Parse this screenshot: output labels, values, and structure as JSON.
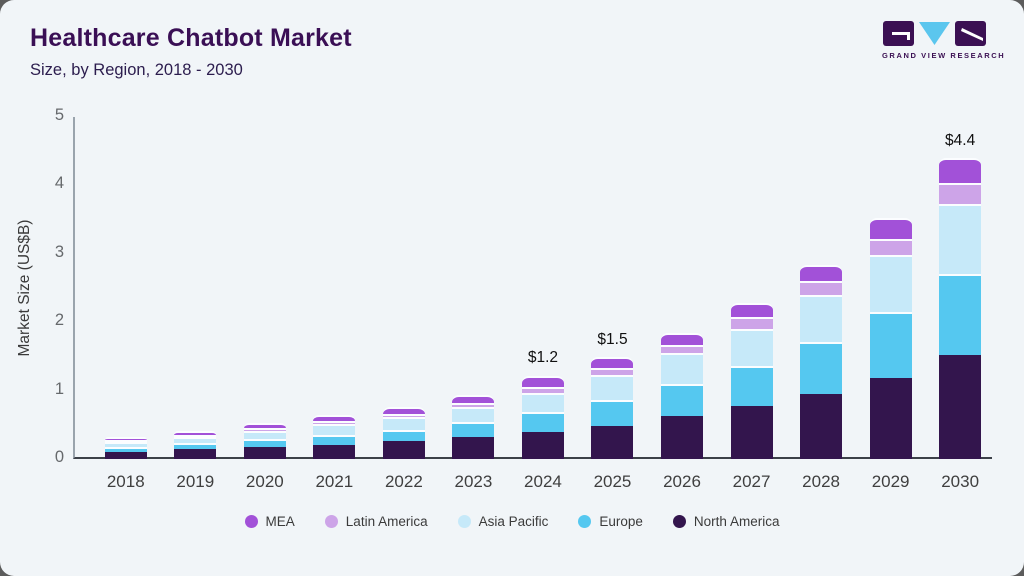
{
  "header": {
    "title": "Healthcare Chatbot Market",
    "subtitle": "Size, by Region, 2018 - 2030"
  },
  "logo": {
    "text": "GRAND VIEW RESEARCH",
    "dark_color": "#3b1053",
    "accent_color": "#5bc6ee"
  },
  "chart_data": {
    "type": "bar",
    "stacked": true,
    "title": "Healthcare Chatbot Market Size, by Region, 2018 - 2030",
    "xlabel": "",
    "ylabel": "Market Size (US$B)",
    "ylim": [
      0,
      5
    ],
    "yticks": [
      0,
      1,
      2,
      3,
      4,
      5
    ],
    "grid": false,
    "legend_position": "bottom",
    "categories": [
      "2018",
      "2019",
      "2020",
      "2021",
      "2022",
      "2023",
      "2024",
      "2025",
      "2026",
      "2027",
      "2028",
      "2029",
      "2030"
    ],
    "series": [
      {
        "name": "North America",
        "color": "#33154d",
        "values": [
          0.1,
          0.14,
          0.18,
          0.21,
          0.27,
          0.32,
          0.4,
          0.48,
          0.63,
          0.78,
          0.95,
          1.18,
          1.52
        ]
      },
      {
        "name": "Europe",
        "color": "#55c8f0",
        "values": [
          0.07,
          0.09,
          0.12,
          0.15,
          0.16,
          0.22,
          0.29,
          0.38,
          0.47,
          0.59,
          0.76,
          0.96,
          1.18
        ]
      },
      {
        "name": "Asia Pacific",
        "color": "#c6e9f9",
        "values": [
          0.08,
          0.09,
          0.12,
          0.16,
          0.19,
          0.22,
          0.28,
          0.36,
          0.45,
          0.54,
          0.68,
          0.83,
          1.02
        ]
      },
      {
        "name": "Latin America",
        "color": "#cda4e8",
        "values": [
          0.03,
          0.03,
          0.04,
          0.04,
          0.05,
          0.06,
          0.09,
          0.1,
          0.12,
          0.17,
          0.2,
          0.23,
          0.3
        ]
      },
      {
        "name": "MEA",
        "color": "#a251d8",
        "values": [
          0.05,
          0.06,
          0.07,
          0.09,
          0.1,
          0.12,
          0.16,
          0.16,
          0.18,
          0.2,
          0.23,
          0.31,
          0.36
        ]
      }
    ],
    "legend_order": [
      "MEA",
      "Latin America",
      "Asia Pacific",
      "Europe",
      "North America"
    ],
    "bar_labels": {
      "2024": "$1.2",
      "2025": "$1.5",
      "2030": "$4.4"
    }
  }
}
